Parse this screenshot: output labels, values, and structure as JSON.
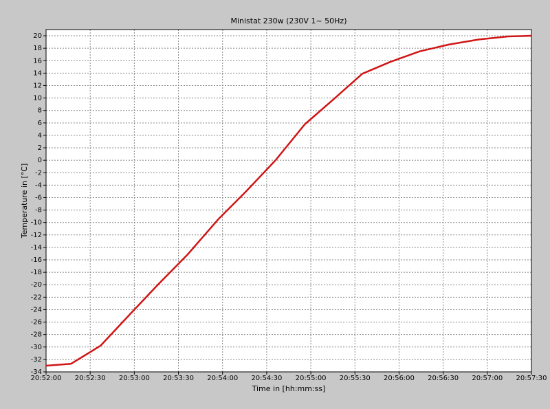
{
  "chart_data": {
    "type": "line",
    "title": "Ministat 230w (230V 1~ 50Hz)",
    "x_label": "Time in [hh:mm:ss]",
    "y_label": "Temperature in [°C]",
    "x": [
      "20:52:00",
      "20:52:17",
      "20:52:37",
      "20:52:58",
      "20:53:16",
      "20:53:36",
      "20:53:57",
      "20:54:16",
      "20:54:36",
      "20:54:56",
      "20:55:15",
      "20:55:35",
      "20:55:54",
      "20:56:14",
      "20:56:34",
      "20:56:54",
      "20:57:14",
      "20:57:30"
    ],
    "values": [
      -33,
      -32.7,
      -29.8,
      -24.5,
      -20,
      -15.2,
      -9.5,
      -5,
      0,
      5.8,
      9.7,
      13.9,
      15.8,
      17.5,
      18.6,
      19.4,
      19.9,
      20
    ],
    "color": "#d01515",
    "xlim": [
      "20:52:00",
      "20:57:30"
    ],
    "xticks": [
      "20:52:00",
      "20:52:30",
      "20:53:00",
      "20:53:30",
      "20:54:00",
      "20:54:30",
      "20:55:00",
      "20:55:30",
      "20:56:00",
      "20:56:30",
      "20:57:00",
      "20:57:30"
    ],
    "ylim": [
      -34,
      21
    ],
    "yticks": [
      20,
      18,
      16,
      14,
      12,
      10,
      8,
      6,
      4,
      2,
      0,
      -2,
      -4,
      -6,
      -8,
      -10,
      -12,
      -14,
      -16,
      -18,
      -20,
      -22,
      -24,
      -26,
      -28,
      -30,
      -32,
      -34
    ],
    "grid": true
  }
}
